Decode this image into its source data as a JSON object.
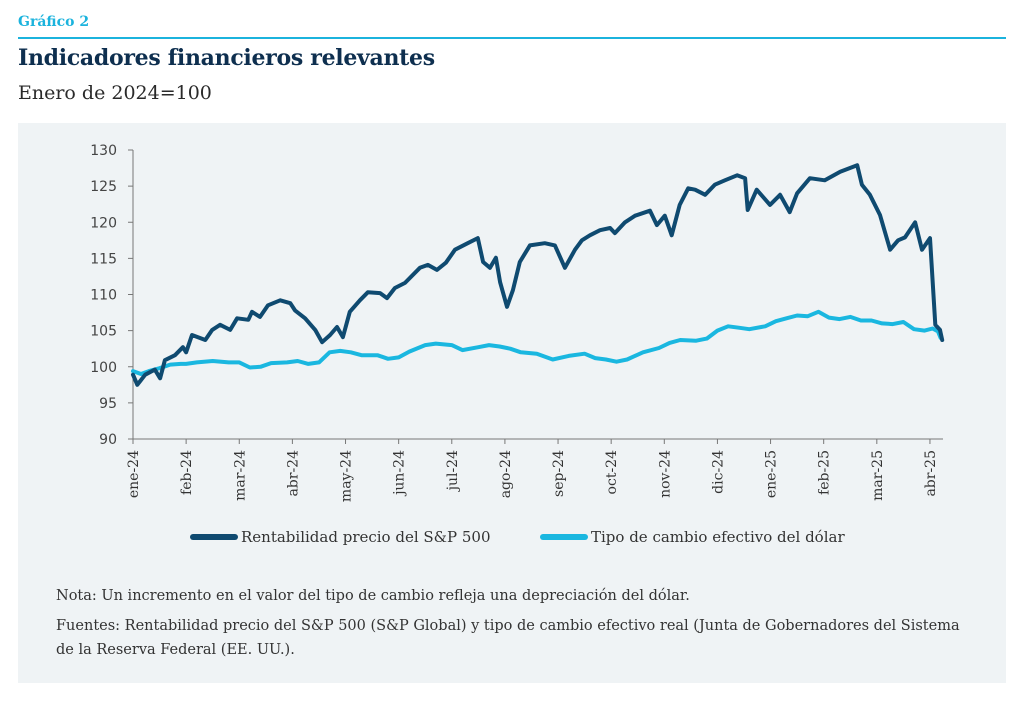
{
  "header": {
    "kicker": "Gráfico 2",
    "title": "Indicadores financieros relevantes",
    "subtitle": "Enero de 2024=100"
  },
  "notes": {
    "nota": "Nota: Un incremento en el valor del tipo de cambio refleja una depreciación del dólar.",
    "fuentes": "Fuentes: Rentabilidad precio del S&P 500 (S&P Global) y tipo de cambio efectivo real (Junta de Gobernadores del Sistema de la Reserva Federal (EE. UU.)."
  },
  "colors": {
    "kicker": "#1bb3dd",
    "title": "#0e2f4f",
    "sp500": "#0f4a70",
    "dollar": "#1ab7e0",
    "panel": "#eff3f5"
  },
  "chart_data": {
    "type": "line",
    "title": "Indicadores financieros relevantes",
    "subtitle": "Enero de 2024=100",
    "xlabel": "",
    "ylabel": "",
    "ylim": [
      90,
      130
    ],
    "yticks": [
      90,
      95,
      100,
      105,
      110,
      115,
      120,
      125,
      130
    ],
    "ytick_labels": [
      "90",
      "95",
      "100",
      "105",
      "110",
      "115",
      "120",
      "125",
      "130"
    ],
    "x_unit": "months since ene-24",
    "xlim": [
      0,
      15.2
    ],
    "categories": [
      "ene-24",
      "feb-24",
      "mar-24",
      "abr-24",
      "may-24",
      "jun-24",
      "jul-24",
      "ago-24",
      "sep-24",
      "oct-24",
      "nov-24",
      "dic-24",
      "ene-25",
      "feb-25",
      "mar-25",
      "abr-25"
    ],
    "grid": false,
    "legend_position": "bottom",
    "series": [
      {
        "name": "Rentabilidad precio del S&P 500",
        "color": "#0f4a70",
        "points": [
          [
            0.0,
            98.9
          ],
          [
            0.08,
            97.5
          ],
          [
            0.23,
            98.9
          ],
          [
            0.41,
            99.6
          ],
          [
            0.51,
            98.4
          ],
          [
            0.6,
            100.9
          ],
          [
            0.79,
            101.6
          ],
          [
            0.94,
            102.7
          ],
          [
            1.0,
            102.0
          ],
          [
            1.11,
            104.4
          ],
          [
            1.36,
            103.7
          ],
          [
            1.49,
            105.1
          ],
          [
            1.64,
            105.8
          ],
          [
            1.83,
            105.1
          ],
          [
            1.96,
            106.7
          ],
          [
            2.17,
            106.5
          ],
          [
            2.24,
            107.6
          ],
          [
            2.39,
            106.9
          ],
          [
            2.54,
            108.5
          ],
          [
            2.77,
            109.2
          ],
          [
            2.96,
            108.8
          ],
          [
            3.05,
            107.8
          ],
          [
            3.24,
            106.7
          ],
          [
            3.43,
            105.1
          ],
          [
            3.56,
            103.4
          ],
          [
            3.71,
            104.4
          ],
          [
            3.84,
            105.5
          ],
          [
            3.95,
            104.1
          ],
          [
            4.08,
            107.6
          ],
          [
            4.27,
            109.2
          ],
          [
            4.42,
            110.3
          ],
          [
            4.65,
            110.2
          ],
          [
            4.78,
            109.5
          ],
          [
            4.93,
            110.9
          ],
          [
            5.12,
            111.6
          ],
          [
            5.4,
            113.7
          ],
          [
            5.55,
            114.1
          ],
          [
            5.72,
            113.4
          ],
          [
            5.89,
            114.4
          ],
          [
            6.06,
            116.2
          ],
          [
            6.3,
            117.1
          ],
          [
            6.49,
            117.8
          ],
          [
            6.59,
            114.5
          ],
          [
            6.72,
            113.7
          ],
          [
            6.83,
            115.1
          ],
          [
            6.91,
            111.7
          ],
          [
            7.04,
            108.3
          ],
          [
            7.15,
            110.6
          ],
          [
            7.28,
            114.5
          ],
          [
            7.47,
            116.8
          ],
          [
            7.75,
            117.1
          ],
          [
            7.94,
            116.8
          ],
          [
            8.13,
            113.7
          ],
          [
            8.32,
            116.2
          ],
          [
            8.45,
            117.5
          ],
          [
            8.6,
            118.2
          ],
          [
            8.79,
            118.9
          ],
          [
            8.98,
            119.2
          ],
          [
            9.07,
            118.5
          ],
          [
            9.26,
            120.0
          ],
          [
            9.45,
            120.9
          ],
          [
            9.73,
            121.6
          ],
          [
            9.86,
            119.6
          ],
          [
            10.01,
            120.9
          ],
          [
            10.14,
            118.2
          ],
          [
            10.29,
            122.4
          ],
          [
            10.45,
            124.7
          ],
          [
            10.58,
            124.5
          ],
          [
            10.77,
            123.8
          ],
          [
            10.95,
            125.2
          ],
          [
            11.14,
            125.8
          ],
          [
            11.37,
            126.5
          ],
          [
            11.52,
            126.1
          ],
          [
            11.57,
            121.7
          ],
          [
            11.74,
            124.5
          ],
          [
            11.99,
            122.4
          ],
          [
            12.18,
            123.8
          ],
          [
            12.36,
            121.4
          ],
          [
            12.5,
            124.0
          ],
          [
            12.74,
            126.1
          ],
          [
            13.02,
            125.8
          ],
          [
            13.31,
            127.0
          ],
          [
            13.63,
            127.9
          ],
          [
            13.72,
            125.2
          ],
          [
            13.87,
            123.8
          ],
          [
            14.06,
            121.0
          ],
          [
            14.25,
            116.2
          ],
          [
            14.4,
            117.5
          ],
          [
            14.53,
            117.9
          ],
          [
            14.72,
            120.0
          ],
          [
            14.85,
            116.2
          ],
          [
            15.0,
            117.8
          ],
          [
            15.1,
            105.8
          ],
          [
            15.19,
            105.1
          ],
          [
            15.23,
            103.7
          ]
        ]
      },
      {
        "name": "Tipo de cambio efectivo del dólar",
        "color": "#1ab7e0",
        "points": [
          [
            0.0,
            99.4
          ],
          [
            0.15,
            99.0
          ],
          [
            0.3,
            99.4
          ],
          [
            0.5,
            99.8
          ],
          [
            0.7,
            100.3
          ],
          [
            0.9,
            100.4
          ],
          [
            1.0,
            100.4
          ],
          [
            1.2,
            100.6
          ],
          [
            1.5,
            100.8
          ],
          [
            1.8,
            100.6
          ],
          [
            2.0,
            100.6
          ],
          [
            2.2,
            99.9
          ],
          [
            2.4,
            100.0
          ],
          [
            2.6,
            100.5
          ],
          [
            2.9,
            100.6
          ],
          [
            3.1,
            100.8
          ],
          [
            3.3,
            100.4
          ],
          [
            3.5,
            100.6
          ],
          [
            3.7,
            102.0
          ],
          [
            3.9,
            102.2
          ],
          [
            4.1,
            102.0
          ],
          [
            4.3,
            101.6
          ],
          [
            4.6,
            101.6
          ],
          [
            4.8,
            101.1
          ],
          [
            5.0,
            101.3
          ],
          [
            5.2,
            102.1
          ],
          [
            5.5,
            103.0
          ],
          [
            5.7,
            103.2
          ],
          [
            6.0,
            103.0
          ],
          [
            6.2,
            102.3
          ],
          [
            6.5,
            102.7
          ],
          [
            6.7,
            103.0
          ],
          [
            6.9,
            102.8
          ],
          [
            7.1,
            102.5
          ],
          [
            7.3,
            102.0
          ],
          [
            7.6,
            101.8
          ],
          [
            7.9,
            101.0
          ],
          [
            8.2,
            101.5
          ],
          [
            8.5,
            101.8
          ],
          [
            8.7,
            101.2
          ],
          [
            8.9,
            101.0
          ],
          [
            9.1,
            100.7
          ],
          [
            9.3,
            101.0
          ],
          [
            9.6,
            102.0
          ],
          [
            9.9,
            102.6
          ],
          [
            10.1,
            103.3
          ],
          [
            10.3,
            103.7
          ],
          [
            10.6,
            103.6
          ],
          [
            10.8,
            103.9
          ],
          [
            11.0,
            105.0
          ],
          [
            11.2,
            105.6
          ],
          [
            11.4,
            105.4
          ],
          [
            11.6,
            105.2
          ],
          [
            11.9,
            105.6
          ],
          [
            12.1,
            106.3
          ],
          [
            12.3,
            106.7
          ],
          [
            12.5,
            107.1
          ],
          [
            12.7,
            107.0
          ],
          [
            12.9,
            107.6
          ],
          [
            13.1,
            106.8
          ],
          [
            13.3,
            106.6
          ],
          [
            13.5,
            106.9
          ],
          [
            13.7,
            106.4
          ],
          [
            13.9,
            106.4
          ],
          [
            14.1,
            106.0
          ],
          [
            14.3,
            105.9
          ],
          [
            14.5,
            106.2
          ],
          [
            14.7,
            105.2
          ],
          [
            14.9,
            105.0
          ],
          [
            15.05,
            105.3
          ],
          [
            15.15,
            104.9
          ],
          [
            15.2,
            104.0
          ]
        ]
      }
    ]
  }
}
